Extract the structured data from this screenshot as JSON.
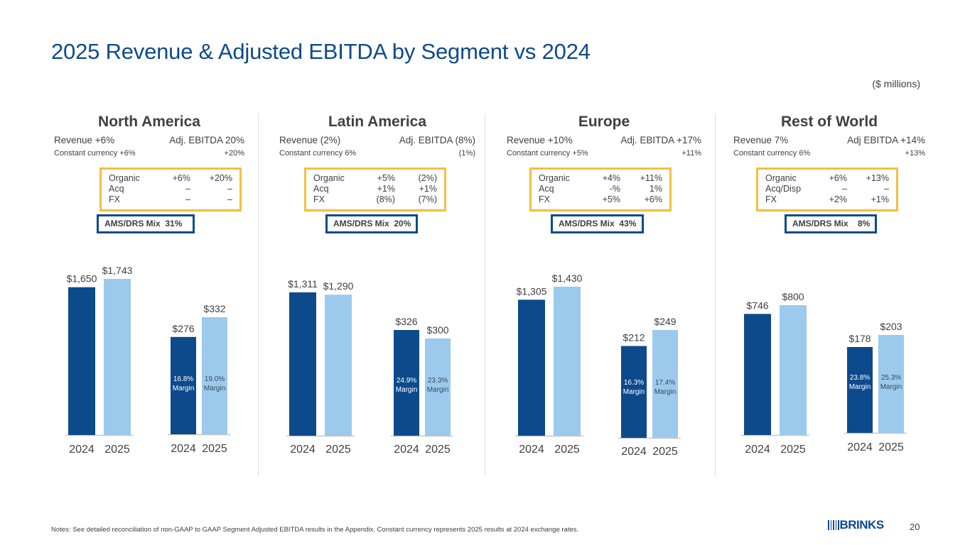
{
  "title": "2025 Revenue & Adjusted EBITDA by Segment vs 2024",
  "units": "($ millions)",
  "colors": {
    "bar_2024": "#0d4a8c",
    "bar_2025": "#9ccaec",
    "title": "#0d4a8c",
    "bridge_border": "#f6be3d",
    "mix_border": "#0d4a8c"
  },
  "segments": [
    {
      "name": "North America",
      "revenue_label": "Revenue +6%",
      "ebitda_label": "Adj. EBITDA 20%",
      "cc_revenue": "Constant currency +6%",
      "cc_ebitda": "+20%",
      "bridge": [
        {
          "label": "Organic",
          "revenue": "+6%",
          "ebitda": "+20%"
        },
        {
          "label": "Acq",
          "revenue": "–",
          "ebitda": "–"
        },
        {
          "label": "FX",
          "revenue": "–",
          "ebitda": "–"
        }
      ],
      "mix": "AMS/DRS Mix  31%"
    },
    {
      "name": "Latin America",
      "revenue_label": "Revenue (2%)",
      "ebitda_label": "Adj. EBITDA (8%)",
      "cc_revenue": "Constant currency 6%",
      "cc_ebitda": "(1%)",
      "bridge": [
        {
          "label": "Organic",
          "revenue": "+5%",
          "ebitda": "(2%)"
        },
        {
          "label": "Acq",
          "revenue": "+1%",
          "ebitda": "+1%"
        },
        {
          "label": "FX",
          "revenue": "(8%)",
          "ebitda": "(7%)"
        }
      ],
      "mix": "AMS/DRS Mix  20%"
    },
    {
      "name": "Europe",
      "revenue_label": "Revenue +10%",
      "ebitda_label": "Adj. EBITDA +17%",
      "cc_revenue": "Constant currency +5%",
      "cc_ebitda": "+11%",
      "bridge": [
        {
          "label": "Organic",
          "revenue": "+4%",
          "ebitda": "+11%"
        },
        {
          "label": "Acq",
          "revenue": "-%",
          "ebitda": "1%"
        },
        {
          "label": "FX",
          "revenue": "+5%",
          "ebitda": "+6%"
        }
      ],
      "mix": "AMS/DRS Mix  43%"
    },
    {
      "name": "Rest of World",
      "revenue_label": "Revenue 7%",
      "ebitda_label": "Adj EBITDA +14%",
      "cc_revenue": "Constant currency 6%",
      "cc_ebitda": "+13%",
      "bridge": [
        {
          "label": "Organic",
          "revenue": "+6%",
          "ebitda": "+13%"
        },
        {
          "label": "Acq/Disp",
          "revenue": "–",
          "ebitda": "–"
        },
        {
          "label": "FX",
          "revenue": "+2%",
          "ebitda": "+1%"
        }
      ],
      "mix": "AMS/DRS Mix    8%"
    }
  ],
  "chart_data": [
    {
      "type": "bar",
      "title": "North America",
      "categories": [
        "2024",
        "2025"
      ],
      "series": [
        {
          "name": "Revenue",
          "values": [
            1650,
            1743
          ],
          "labels": [
            "$1,650",
            "$1,743"
          ]
        },
        {
          "name": "Adj. EBITDA",
          "values": [
            276,
            332
          ],
          "labels": [
            "$276",
            "$332"
          ],
          "margins": [
            "16.8% Margin",
            "19.0% Margin"
          ]
        }
      ]
    },
    {
      "type": "bar",
      "title": "Latin America",
      "categories": [
        "2024",
        "2025"
      ],
      "series": [
        {
          "name": "Revenue",
          "values": [
            1311,
            1290
          ],
          "labels": [
            "$1,311",
            "$1,290"
          ]
        },
        {
          "name": "Adj. EBITDA",
          "values": [
            326,
            300
          ],
          "labels": [
            "$326",
            "$300"
          ],
          "margins": [
            "24.9% Margin",
            "23.3% Margin"
          ]
        }
      ]
    },
    {
      "type": "bar",
      "title": "Europe",
      "categories": [
        "2024",
        "2025"
      ],
      "series": [
        {
          "name": "Revenue",
          "values": [
            1305,
            1430
          ],
          "labels": [
            "$1,305",
            "$1,430"
          ]
        },
        {
          "name": "Adj. EBITDA",
          "values": [
            212,
            249
          ],
          "labels": [
            "$212",
            "$249"
          ],
          "margins": [
            "16.3% Margin",
            "17.4% Margin"
          ]
        }
      ]
    },
    {
      "type": "bar",
      "title": "Rest of World",
      "categories": [
        "2024",
        "2025"
      ],
      "series": [
        {
          "name": "Revenue",
          "values": [
            746,
            800
          ],
          "labels": [
            "$746",
            "$800"
          ]
        },
        {
          "name": "Adj. EBITDA",
          "values": [
            178,
            203
          ],
          "labels": [
            "$178",
            "$203"
          ],
          "margins": [
            "23.8% Margin",
            "25.3% Margin"
          ]
        }
      ]
    }
  ],
  "footer": {
    "note": "Notes: See detailed reconciliation of non-GAAP to GAAP Segment Adjusted EBITDA results in the Appendix. Constant currency represents 2025 results at 2024 exchange rates.",
    "logo": "BRINKS",
    "page_number": "20"
  }
}
